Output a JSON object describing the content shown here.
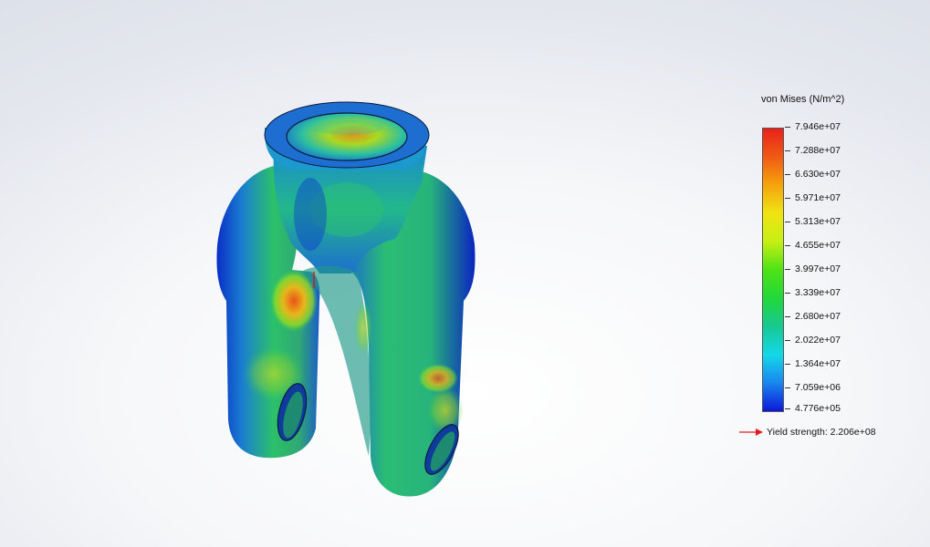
{
  "legend": {
    "title": "von Mises (N/m^2)",
    "ticks": [
      "7.946e+07",
      "7.288e+07",
      "6.630e+07",
      "5.971e+07",
      "5.313e+07",
      "4.655e+07",
      "3.997e+07",
      "3.339e+07",
      "2.680e+07",
      "2.022e+07",
      "1.364e+07",
      "7.059e+06",
      "4.776e+05"
    ],
    "yield_text": "Yield strength: 2.206e+08",
    "yield_arrow_color": "#e02020"
  },
  "colors": {
    "max_stress": "#e8211a",
    "mid_stress": "#4fe216",
    "min_stress": "#0c18d8"
  }
}
